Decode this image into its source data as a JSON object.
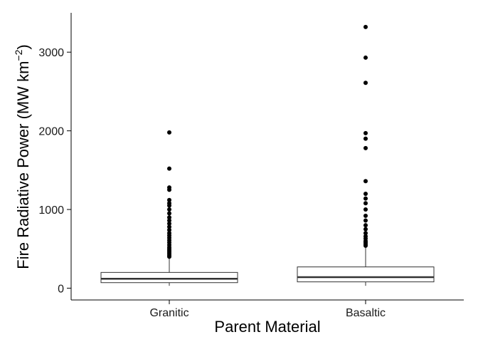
{
  "chart_data": {
    "type": "box",
    "title": "",
    "xlabel": "Parent Material",
    "ylabel_main": "Fire Radiative Power (MW km",
    "ylabel_sup": "−2",
    "ylabel_close": ")",
    "ylim": [
      -150,
      3500
    ],
    "yticks": [
      0,
      1000,
      2000,
      3000
    ],
    "ytick_labels": [
      "0",
      "1000",
      "2000",
      "3000"
    ],
    "categories": [
      "Granitic",
      "Basaltic"
    ],
    "boxes": [
      {
        "category": "Granitic",
        "min": 30,
        "q1": 70,
        "median": 120,
        "q3": 200,
        "max": 390,
        "outliers": [
          400,
          420,
          440,
          460,
          480,
          500,
          520,
          550,
          580,
          610,
          640,
          670,
          700,
          740,
          780,
          820,
          860,
          900,
          950,
          1000,
          1050,
          1080,
          1120,
          1250,
          1280,
          1520,
          1980
        ]
      },
      {
        "category": "Basaltic",
        "min": 30,
        "q1": 80,
        "median": 140,
        "q3": 270,
        "max": 520,
        "outliers": [
          540,
          560,
          580,
          600,
          630,
          660,
          700,
          750,
          800,
          860,
          920,
          1000,
          1080,
          1140,
          1200,
          1360,
          1780,
          1900,
          1970,
          2610,
          2930,
          3320
        ]
      }
    ],
    "grid": false,
    "legend": "none"
  }
}
